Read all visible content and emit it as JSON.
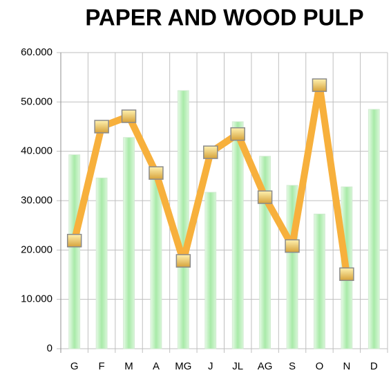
{
  "chart_data": {
    "type": "bar-line",
    "title": "PAPER AND WOOD PULP",
    "categories": [
      "G",
      "F",
      "M",
      "A",
      "MG",
      "J",
      "JL",
      "AG",
      "S",
      "O",
      "N",
      "D"
    ],
    "series": [
      {
        "type": "bar",
        "color": "#b9f0b9",
        "values": [
          39300,
          34600,
          42800,
          35000,
          52300,
          31700,
          46000,
          39000,
          33100,
          27300,
          32800,
          48500
        ]
      },
      {
        "type": "line",
        "color": "#f7b03c",
        "values": [
          21900,
          45000,
          47100,
          35600,
          17800,
          39800,
          43500,
          30700,
          20800,
          53400,
          15100,
          null
        ]
      }
    ],
    "ylim": [
      0,
      60000
    ],
    "yticks": [
      0,
      {
        "value": 10000,
        "label": "10.000"
      },
      {
        "value": 20000,
        "label": "20.000"
      },
      {
        "value": 30000,
        "label": "30.000"
      },
      {
        "value": 40000,
        "label": "40.000"
      },
      {
        "value": 50000,
        "label": "50.000"
      },
      {
        "value": 60000,
        "label": "60.000"
      }
    ],
    "grid": true
  }
}
